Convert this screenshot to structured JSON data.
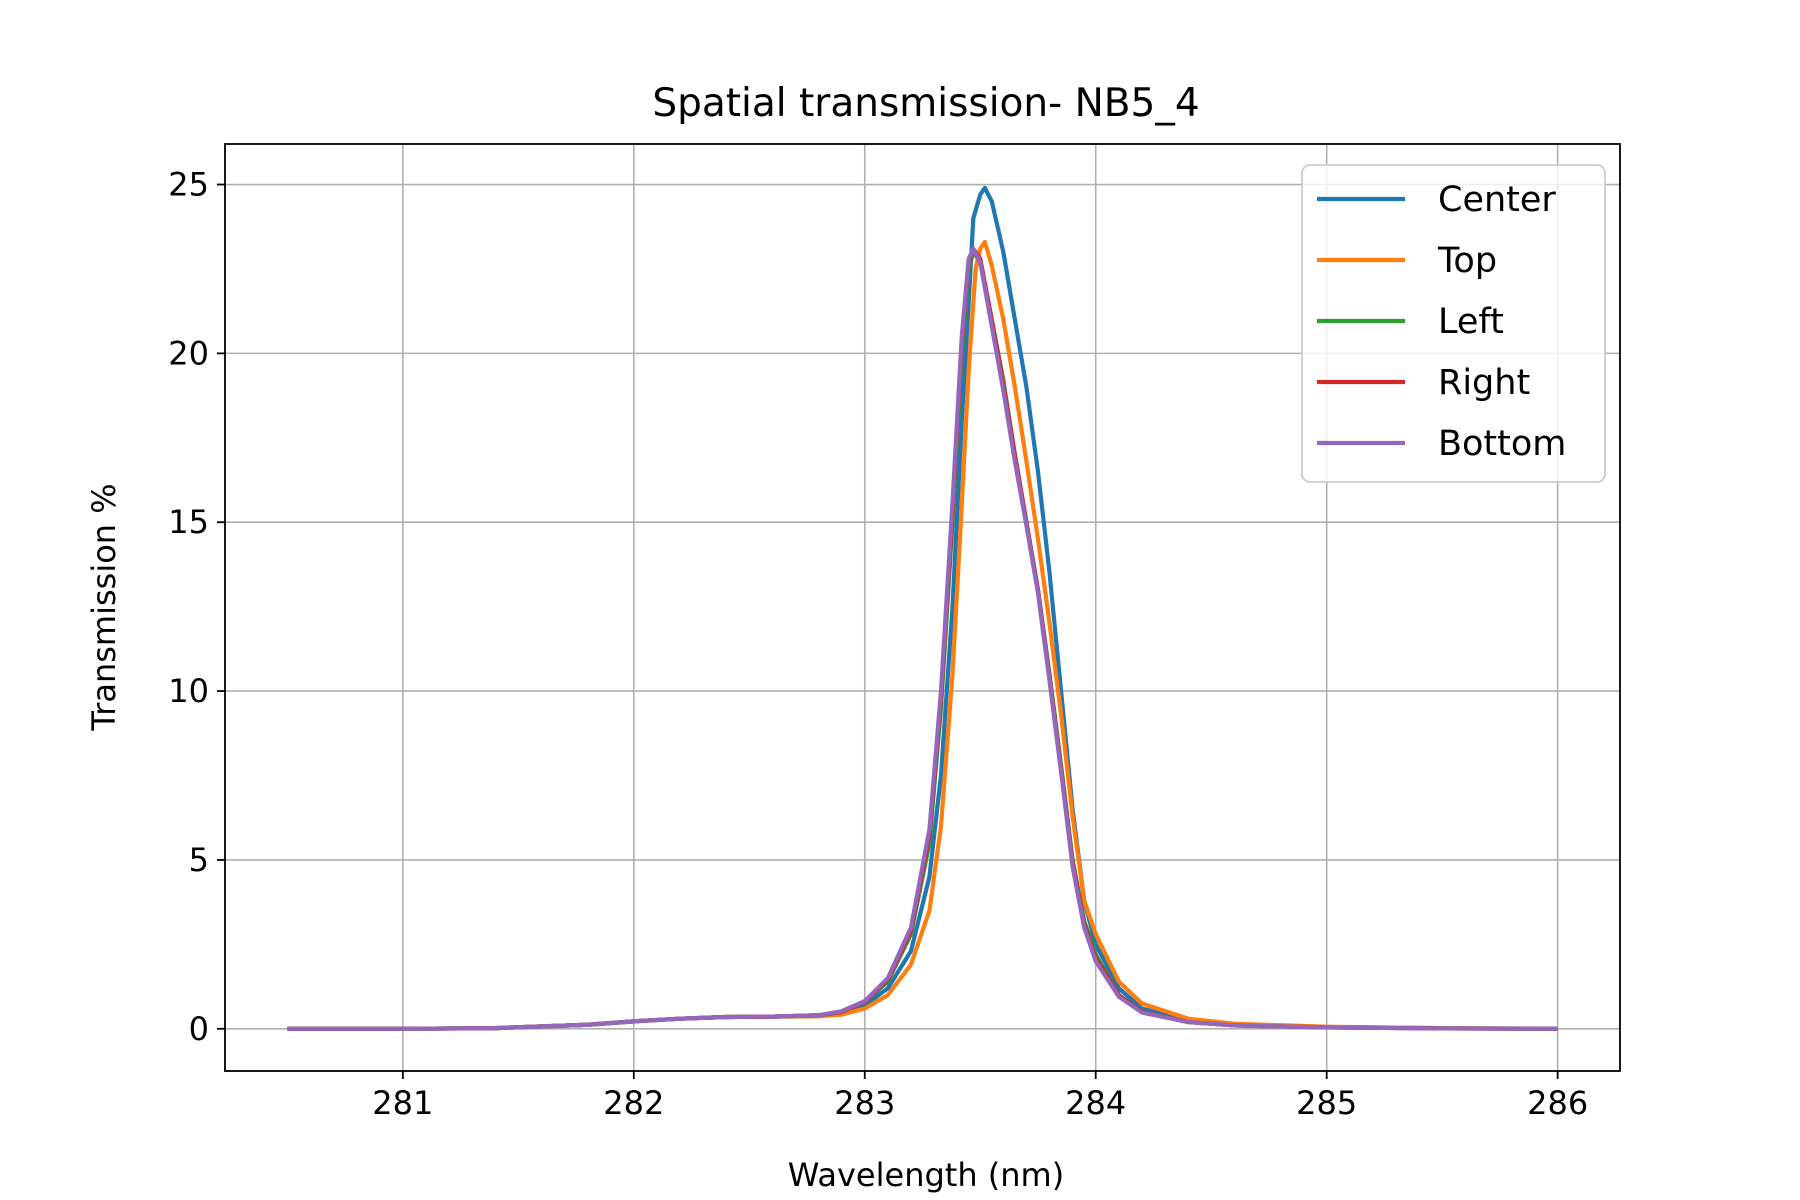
{
  "chart_data": {
    "type": "line",
    "title": "Spatial transmission- NB5_4",
    "xlabel": "Wavelength (nm)",
    "ylabel": "Transmission %",
    "xlim": [
      280.23,
      286.27
    ],
    "ylim": [
      -1.25,
      26.2
    ],
    "xticks": [
      281,
      282,
      283,
      284,
      285,
      286
    ],
    "yticks": [
      0,
      5,
      10,
      15,
      20,
      25
    ],
    "grid": true,
    "legend_position": "top-right",
    "series": [
      {
        "name": "Center",
        "color": "#1f77b4",
        "points": [
          [
            280.5,
            0.0
          ],
          [
            281.0,
            0.0
          ],
          [
            281.4,
            0.02
          ],
          [
            281.8,
            0.12
          ],
          [
            282.0,
            0.22
          ],
          [
            282.2,
            0.3
          ],
          [
            282.4,
            0.35
          ],
          [
            282.6,
            0.36
          ],
          [
            282.8,
            0.38
          ],
          [
            282.9,
            0.45
          ],
          [
            283.0,
            0.7
          ],
          [
            283.1,
            1.2
          ],
          [
            283.2,
            2.3
          ],
          [
            283.28,
            4.5
          ],
          [
            283.33,
            7.5
          ],
          [
            283.38,
            12.5
          ],
          [
            283.42,
            18.0
          ],
          [
            283.45,
            21.5
          ],
          [
            283.47,
            24.0
          ],
          [
            283.5,
            24.7
          ],
          [
            283.52,
            24.9
          ],
          [
            283.55,
            24.5
          ],
          [
            283.6,
            23.0
          ],
          [
            283.65,
            21.0
          ],
          [
            283.7,
            19.0
          ],
          [
            283.75,
            16.5
          ],
          [
            283.8,
            13.5
          ],
          [
            283.85,
            10.0
          ],
          [
            283.9,
            6.5
          ],
          [
            283.95,
            3.8
          ],
          [
            284.0,
            2.5
          ],
          [
            284.1,
            1.2
          ],
          [
            284.2,
            0.6
          ],
          [
            284.4,
            0.25
          ],
          [
            284.6,
            0.12
          ],
          [
            285.0,
            0.05
          ],
          [
            285.5,
            0.02
          ],
          [
            286.0,
            0.0
          ]
        ]
      },
      {
        "name": "Top",
        "color": "#ff7f0e",
        "points": [
          [
            280.5,
            0.0
          ],
          [
            281.0,
            0.0
          ],
          [
            281.4,
            0.02
          ],
          [
            281.8,
            0.12
          ],
          [
            282.0,
            0.22
          ],
          [
            282.2,
            0.3
          ],
          [
            282.4,
            0.35
          ],
          [
            282.6,
            0.36
          ],
          [
            282.8,
            0.37
          ],
          [
            282.9,
            0.42
          ],
          [
            283.0,
            0.6
          ],
          [
            283.1,
            1.0
          ],
          [
            283.2,
            1.9
          ],
          [
            283.28,
            3.5
          ],
          [
            283.33,
            6.0
          ],
          [
            283.38,
            10.5
          ],
          [
            283.42,
            15.5
          ],
          [
            283.45,
            19.5
          ],
          [
            283.48,
            22.5
          ],
          [
            283.5,
            23.1
          ],
          [
            283.52,
            23.3
          ],
          [
            283.55,
            22.6
          ],
          [
            283.6,
            21.0
          ],
          [
            283.65,
            19.0
          ],
          [
            283.7,
            16.8
          ],
          [
            283.75,
            14.5
          ],
          [
            283.8,
            12.0
          ],
          [
            283.85,
            9.3
          ],
          [
            283.9,
            6.3
          ],
          [
            283.95,
            3.8
          ],
          [
            284.0,
            2.8
          ],
          [
            284.1,
            1.4
          ],
          [
            284.2,
            0.75
          ],
          [
            284.4,
            0.3
          ],
          [
            284.6,
            0.15
          ],
          [
            285.0,
            0.06
          ],
          [
            285.5,
            0.02
          ],
          [
            286.0,
            0.0
          ]
        ]
      },
      {
        "name": "Left",
        "color": "#2ca02c",
        "points": [
          [
            280.5,
            0.0
          ],
          [
            281.0,
            0.0
          ],
          [
            281.4,
            0.02
          ],
          [
            281.8,
            0.12
          ],
          [
            282.0,
            0.22
          ],
          [
            282.2,
            0.3
          ],
          [
            282.4,
            0.35
          ],
          [
            282.6,
            0.36
          ],
          [
            282.8,
            0.4
          ],
          [
            282.9,
            0.5
          ],
          [
            283.0,
            0.8
          ],
          [
            283.1,
            1.4
          ],
          [
            283.2,
            2.8
          ],
          [
            283.28,
            5.5
          ],
          [
            283.33,
            9.5
          ],
          [
            283.38,
            15.0
          ],
          [
            283.42,
            20.0
          ],
          [
            283.45,
            22.5
          ],
          [
            283.47,
            23.0
          ],
          [
            283.5,
            22.7
          ],
          [
            283.55,
            21.0
          ],
          [
            283.6,
            19.2
          ],
          [
            283.65,
            17.0
          ],
          [
            283.7,
            15.0
          ],
          [
            283.75,
            13.0
          ],
          [
            283.8,
            10.5
          ],
          [
            283.85,
            7.8
          ],
          [
            283.9,
            5.0
          ],
          [
            283.95,
            3.2
          ],
          [
            284.0,
            2.2
          ],
          [
            284.1,
            1.0
          ],
          [
            284.2,
            0.5
          ],
          [
            284.4,
            0.2
          ],
          [
            284.6,
            0.1
          ],
          [
            285.0,
            0.04
          ],
          [
            285.5,
            0.01
          ],
          [
            286.0,
            0.0
          ]
        ]
      },
      {
        "name": "Right",
        "color": "#d62728",
        "points": [
          [
            280.5,
            0.0
          ],
          [
            281.0,
            0.0
          ],
          [
            281.4,
            0.02
          ],
          [
            281.8,
            0.12
          ],
          [
            282.0,
            0.22
          ],
          [
            282.2,
            0.3
          ],
          [
            282.4,
            0.35
          ],
          [
            282.6,
            0.36
          ],
          [
            282.8,
            0.4
          ],
          [
            282.9,
            0.5
          ],
          [
            283.0,
            0.8
          ],
          [
            283.1,
            1.45
          ],
          [
            283.2,
            2.9
          ],
          [
            283.28,
            5.7
          ],
          [
            283.33,
            9.8
          ],
          [
            283.38,
            15.3
          ],
          [
            283.42,
            20.3
          ],
          [
            283.45,
            22.7
          ],
          [
            283.47,
            23.1
          ],
          [
            283.5,
            22.8
          ],
          [
            283.55,
            21.0
          ],
          [
            283.6,
            19.1
          ],
          [
            283.65,
            17.0
          ],
          [
            283.7,
            15.0
          ],
          [
            283.75,
            13.0
          ],
          [
            283.8,
            10.4
          ],
          [
            283.85,
            7.7
          ],
          [
            283.9,
            4.9
          ],
          [
            283.95,
            3.1
          ],
          [
            284.0,
            2.1
          ],
          [
            284.1,
            1.0
          ],
          [
            284.2,
            0.5
          ],
          [
            284.4,
            0.2
          ],
          [
            284.6,
            0.1
          ],
          [
            285.0,
            0.04
          ],
          [
            285.5,
            0.01
          ],
          [
            286.0,
            0.0
          ]
        ]
      },
      {
        "name": "Bottom",
        "color": "#9467bd",
        "points": [
          [
            280.5,
            0.0
          ],
          [
            281.0,
            0.0
          ],
          [
            281.4,
            0.02
          ],
          [
            281.8,
            0.12
          ],
          [
            282.0,
            0.22
          ],
          [
            282.2,
            0.3
          ],
          [
            282.4,
            0.35
          ],
          [
            282.6,
            0.36
          ],
          [
            282.8,
            0.4
          ],
          [
            282.9,
            0.52
          ],
          [
            283.0,
            0.82
          ],
          [
            283.1,
            1.5
          ],
          [
            283.2,
            3.0
          ],
          [
            283.28,
            5.9
          ],
          [
            283.33,
            10.0
          ],
          [
            283.38,
            15.6
          ],
          [
            283.42,
            20.5
          ],
          [
            283.45,
            22.8
          ],
          [
            283.47,
            23.1
          ],
          [
            283.5,
            22.7
          ],
          [
            283.55,
            20.8
          ],
          [
            283.6,
            18.9
          ],
          [
            283.65,
            16.8
          ],
          [
            283.7,
            14.9
          ],
          [
            283.75,
            12.9
          ],
          [
            283.8,
            10.3
          ],
          [
            283.85,
            7.6
          ],
          [
            283.9,
            4.8
          ],
          [
            283.95,
            3.0
          ],
          [
            284.0,
            2.0
          ],
          [
            284.1,
            0.95
          ],
          [
            284.2,
            0.48
          ],
          [
            284.4,
            0.2
          ],
          [
            284.6,
            0.1
          ],
          [
            285.0,
            0.04
          ],
          [
            285.5,
            0.01
          ],
          [
            286.0,
            0.0
          ]
        ]
      }
    ]
  }
}
